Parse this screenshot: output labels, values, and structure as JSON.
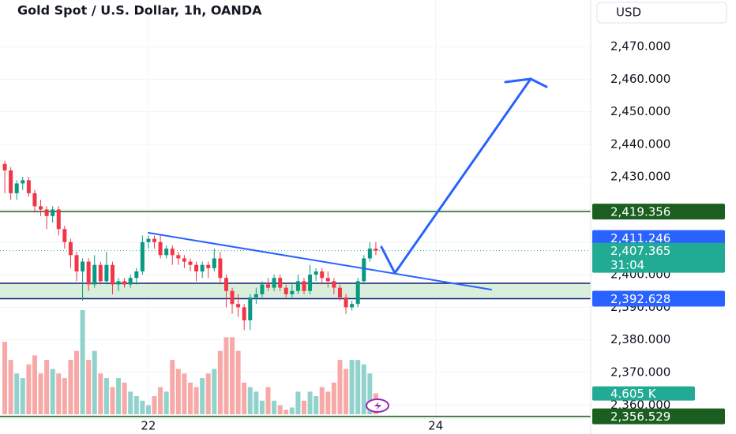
{
  "chart_data": {
    "type": "candlestick",
    "title": "Gold Spot / U.S. Dollar, 1h, OANDA",
    "currency": "USD",
    "x": [
      -24,
      -23,
      -22,
      -21,
      -20,
      -19,
      -18,
      -17,
      -16,
      -15,
      -14,
      -13,
      -12,
      -11,
      -10,
      -9,
      -8,
      -7,
      -6,
      -5,
      -4,
      -3,
      -2,
      -1,
      0,
      1,
      2,
      3,
      4,
      5,
      6,
      7,
      8,
      9,
      10,
      11,
      12,
      13,
      14,
      15,
      16,
      17,
      18,
      19,
      20,
      21,
      22,
      23,
      24,
      25,
      26,
      27,
      28,
      29,
      30,
      31,
      32,
      33,
      34,
      35,
      36,
      37,
      38
    ],
    "open": [
      2434,
      2432,
      2425,
      2428,
      2429,
      2425,
      2421,
      2420,
      2418,
      2420,
      2414,
      2410,
      2406,
      2401,
      2404,
      2397,
      2403,
      2398,
      2403,
      2397,
      2398,
      2397,
      2399,
      2401,
      2410,
      2411,
      2410,
      2406,
      2408,
      2406,
      2405,
      2404,
      2403,
      2401,
      2403,
      2402,
      2405,
      2399,
      2395,
      2391,
      2390,
      2386,
      2393,
      2394,
      2397,
      2396,
      2399,
      2396,
      2394,
      2395,
      2398,
      2395,
      2400,
      2401,
      2399,
      2398,
      2396,
      2393,
      2390,
      2391,
      2398,
      2405,
      2408
    ],
    "high": [
      2435,
      2433,
      2429,
      2430,
      2430,
      2426,
      2423,
      2421,
      2421,
      2421,
      2415,
      2411,
      2407,
      2405,
      2405,
      2406,
      2404,
      2407,
      2404,
      2399,
      2399,
      2400,
      2402,
      2412,
      2412,
      2412,
      2412,
      2409,
      2409,
      2407,
      2406,
      2405,
      2404,
      2404,
      2404,
      2408,
      2407,
      2400,
      2396,
      2394,
      2391,
      2394,
      2396,
      2398,
      2399,
      2400,
      2400,
      2397,
      2397,
      2400,
      2399,
      2403,
      2402,
      2402,
      2401,
      2399,
      2397,
      2394,
      2392,
      2399,
      2406,
      2410,
      2410
    ],
    "low": [
      2425,
      2423,
      2423,
      2426,
      2424,
      2419,
      2418,
      2414,
      2416,
      2412,
      2408,
      2402,
      2398,
      2392,
      2395,
      2396,
      2397,
      2397,
      2394,
      2395,
      2396,
      2396,
      2397,
      2400,
      2408,
      2408,
      2405,
      2405,
      2403,
      2403,
      2402,
      2401,
      2398,
      2399,
      2399,
      2401,
      2397,
      2390,
      2388,
      2387,
      2383,
      2383,
      2391,
      2393,
      2395,
      2395,
      2395,
      2393,
      2393,
      2394,
      2394,
      2394,
      2398,
      2397,
      2396,
      2394,
      2392,
      2388,
      2389,
      2390,
      2397,
      2404,
      2406
    ],
    "close": [
      2432,
      2425,
      2428,
      2429,
      2425,
      2421,
      2420,
      2418,
      2420,
      2414,
      2410,
      2406,
      2401,
      2404,
      2397,
      2403,
      2398,
      2403,
      2397,
      2398,
      2397,
      2399,
      2401,
      2410,
      2411,
      2410,
      2406,
      2408,
      2406,
      2405,
      2404,
      2403,
      2401,
      2403,
      2402,
      2405,
      2399,
      2395,
      2391,
      2390,
      2386,
      2393,
      2394,
      2397,
      2396,
      2399,
      2396,
      2394,
      2395,
      2398,
      2395,
      2400,
      2401,
      2399,
      2398,
      2396,
      2393,
      2390,
      2391,
      2398,
      2405,
      2408,
      2407.365
    ],
    "volume": [
      16,
      12,
      9,
      8,
      11,
      13,
      9,
      12,
      10,
      9,
      8,
      12,
      14,
      23,
      12,
      14,
      9,
      8,
      6,
      8,
      7,
      5,
      4,
      3,
      2,
      4,
      6,
      5,
      12,
      10,
      9,
      7,
      6,
      8,
      9,
      10,
      14,
      17,
      17,
      14,
      7,
      6,
      5,
      3,
      6,
      3,
      2,
      1,
      1.5,
      5,
      3,
      5,
      4,
      6,
      5,
      7,
      12,
      10,
      12,
      12,
      11,
      9,
      4.605
    ],
    "volume_label": "4.605 K",
    "up_color": "#089981",
    "down_color": "#f23645",
    "up_volume_color": "#92d2cc",
    "down_volume_color": "#f7a9a7",
    "xlim": [
      -24.8,
      73.9
    ],
    "xticks": [
      {
        "value": 0,
        "label": "22"
      },
      {
        "value": 48,
        "label": "24"
      }
    ],
    "ylim": [
      2351.1,
      2484.3
    ],
    "yticks": [
      {
        "value": 2360,
        "label": "2,360.000"
      },
      {
        "value": 2370,
        "label": "2,370.000"
      },
      {
        "value": 2380,
        "label": "2,380.000"
      },
      {
        "value": 2390,
        "label": "2,390.000"
      },
      {
        "value": 2400,
        "label": "2,400.000"
      },
      {
        "value": 2410,
        "label": "2,410.000"
      },
      {
        "value": 2420,
        "label": "2,420.000"
      },
      {
        "value": 2430,
        "label": "2,430.000"
      },
      {
        "value": 2440,
        "label": "2,440.000"
      },
      {
        "value": 2450,
        "label": "2,450.000"
      },
      {
        "value": 2460,
        "label": "2,460.000"
      },
      {
        "value": 2470,
        "label": "2,470.000"
      }
    ],
    "grid": true,
    "zone": {
      "top": 2397.35,
      "bottom": 2392.628,
      "color": "#d9efdb",
      "line_color": "#0d1f7a"
    },
    "hlines": [
      {
        "value": 2419.356,
        "color": "#1b5e20"
      },
      {
        "value": 2356.529,
        "color": "#1b5e20"
      }
    ],
    "price_labels": [
      {
        "value": 2419.356,
        "label": "2,419.356",
        "color": "#1b5e20"
      },
      {
        "value": 2411.246,
        "label": "2,411.246",
        "color": "#2962ff"
      },
      {
        "value": 2392.628,
        "label": "2,392.628",
        "color": "#2962ff"
      },
      {
        "value": 2356.529,
        "label": "2,356.529",
        "color": "#1b5e20"
      }
    ],
    "last_price": {
      "value": 2407.365,
      "label": "2,407.365",
      "countdown": "31:04",
      "color": "#22ab94"
    }
  }
}
